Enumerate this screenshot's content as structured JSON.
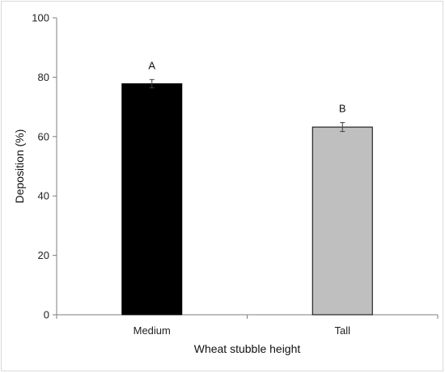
{
  "chart_data": {
    "type": "bar",
    "categories": [
      "Medium",
      "Tall"
    ],
    "values": [
      77.8,
      63.2
    ],
    "errors": [
      1.4,
      1.5
    ],
    "letters": [
      "A",
      "B"
    ],
    "colors": [
      "#000000",
      "#bfbfbf"
    ],
    "xlabel": "Wheat stubble height",
    "ylabel": "Deposition (%)",
    "ylim": [
      0,
      100
    ],
    "yticks": [
      0,
      20,
      40,
      60,
      80,
      100
    ],
    "grid": false,
    "legend": false
  }
}
